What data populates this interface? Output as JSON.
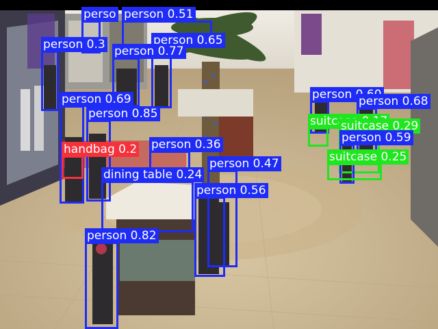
{
  "image": {
    "description_colors": {
      "floor": "#cdb996",
      "wall": "#e6e2d8",
      "top_bar": "#000000"
    }
  },
  "detections": [
    {
      "label": "person 0.51",
      "color": "#1e2cf5"
    },
    {
      "label": "perso",
      "color": "#1e2cf5"
    },
    {
      "label": "person 0.3",
      "color": "#1e2cf5"
    },
    {
      "label": "person 0.65",
      "color": "#1e2cf5"
    },
    {
      "label": "person 0.77",
      "color": "#1e2cf5"
    },
    {
      "label": "person 0.69",
      "color": "#1e2cf5"
    },
    {
      "label": "person 0.85",
      "color": "#1e2cf5"
    },
    {
      "label": "handbag 0.2",
      "color": "#f5323c"
    },
    {
      "label": "person 0.36",
      "color": "#1e2cf5"
    },
    {
      "label": "dining table 0.24",
      "color": "#1e2cf5"
    },
    {
      "label": "person 0.47",
      "color": "#1e2cf5"
    },
    {
      "label": "person 0.56",
      "color": "#1e2cf5"
    },
    {
      "label": "person 0.82",
      "color": "#1e2cf5"
    },
    {
      "label": "person 0.60",
      "color": "#1e2cf5"
    },
    {
      "label": "person 0.68",
      "color": "#1e2cf5"
    },
    {
      "label": "suitcase 0.17",
      "color": "#1fe61f"
    },
    {
      "label": "suitcase 0.29",
      "color": "#1fe61f"
    },
    {
      "label": "person 0.59",
      "color": "#1e2cf5"
    },
    {
      "label": "suitcase 0.25",
      "color": "#1fe61f"
    }
  ]
}
